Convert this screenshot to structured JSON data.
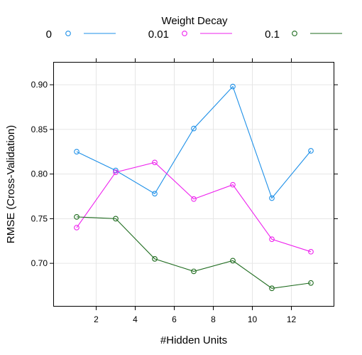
{
  "chart_data": {
    "type": "line",
    "legend_title": "Weight Decay",
    "legend_position": "top",
    "xlabel": "#Hidden Units",
    "ylabel": "RMSE (Cross-Validation)",
    "x": [
      1,
      3,
      5,
      7,
      9,
      11,
      13
    ],
    "xlim": [
      -0.2,
      14.2
    ],
    "ylim": [
      0.6515,
      0.9256
    ],
    "xticks": [
      2,
      4,
      6,
      8,
      10,
      12
    ],
    "yticks": [
      0.7,
      0.75,
      0.8,
      0.85,
      0.9
    ],
    "ytick_labels": [
      "0.70",
      "0.75",
      "0.80",
      "0.85",
      "0.90"
    ],
    "grid": true,
    "series": [
      {
        "name": "0",
        "color": "#1e90e8",
        "values": [
          0.825,
          0.804,
          0.778,
          0.851,
          0.898,
          0.773,
          0.826
        ]
      },
      {
        "name": "0.01",
        "color": "#ee22ee",
        "values": [
          0.74,
          0.802,
          0.813,
          0.772,
          0.788,
          0.727,
          0.713
        ]
      },
      {
        "name": "0.1",
        "color": "#1e6b1e",
        "values": [
          0.752,
          0.75,
          0.705,
          0.691,
          0.703,
          0.672,
          0.678
        ]
      }
    ]
  }
}
